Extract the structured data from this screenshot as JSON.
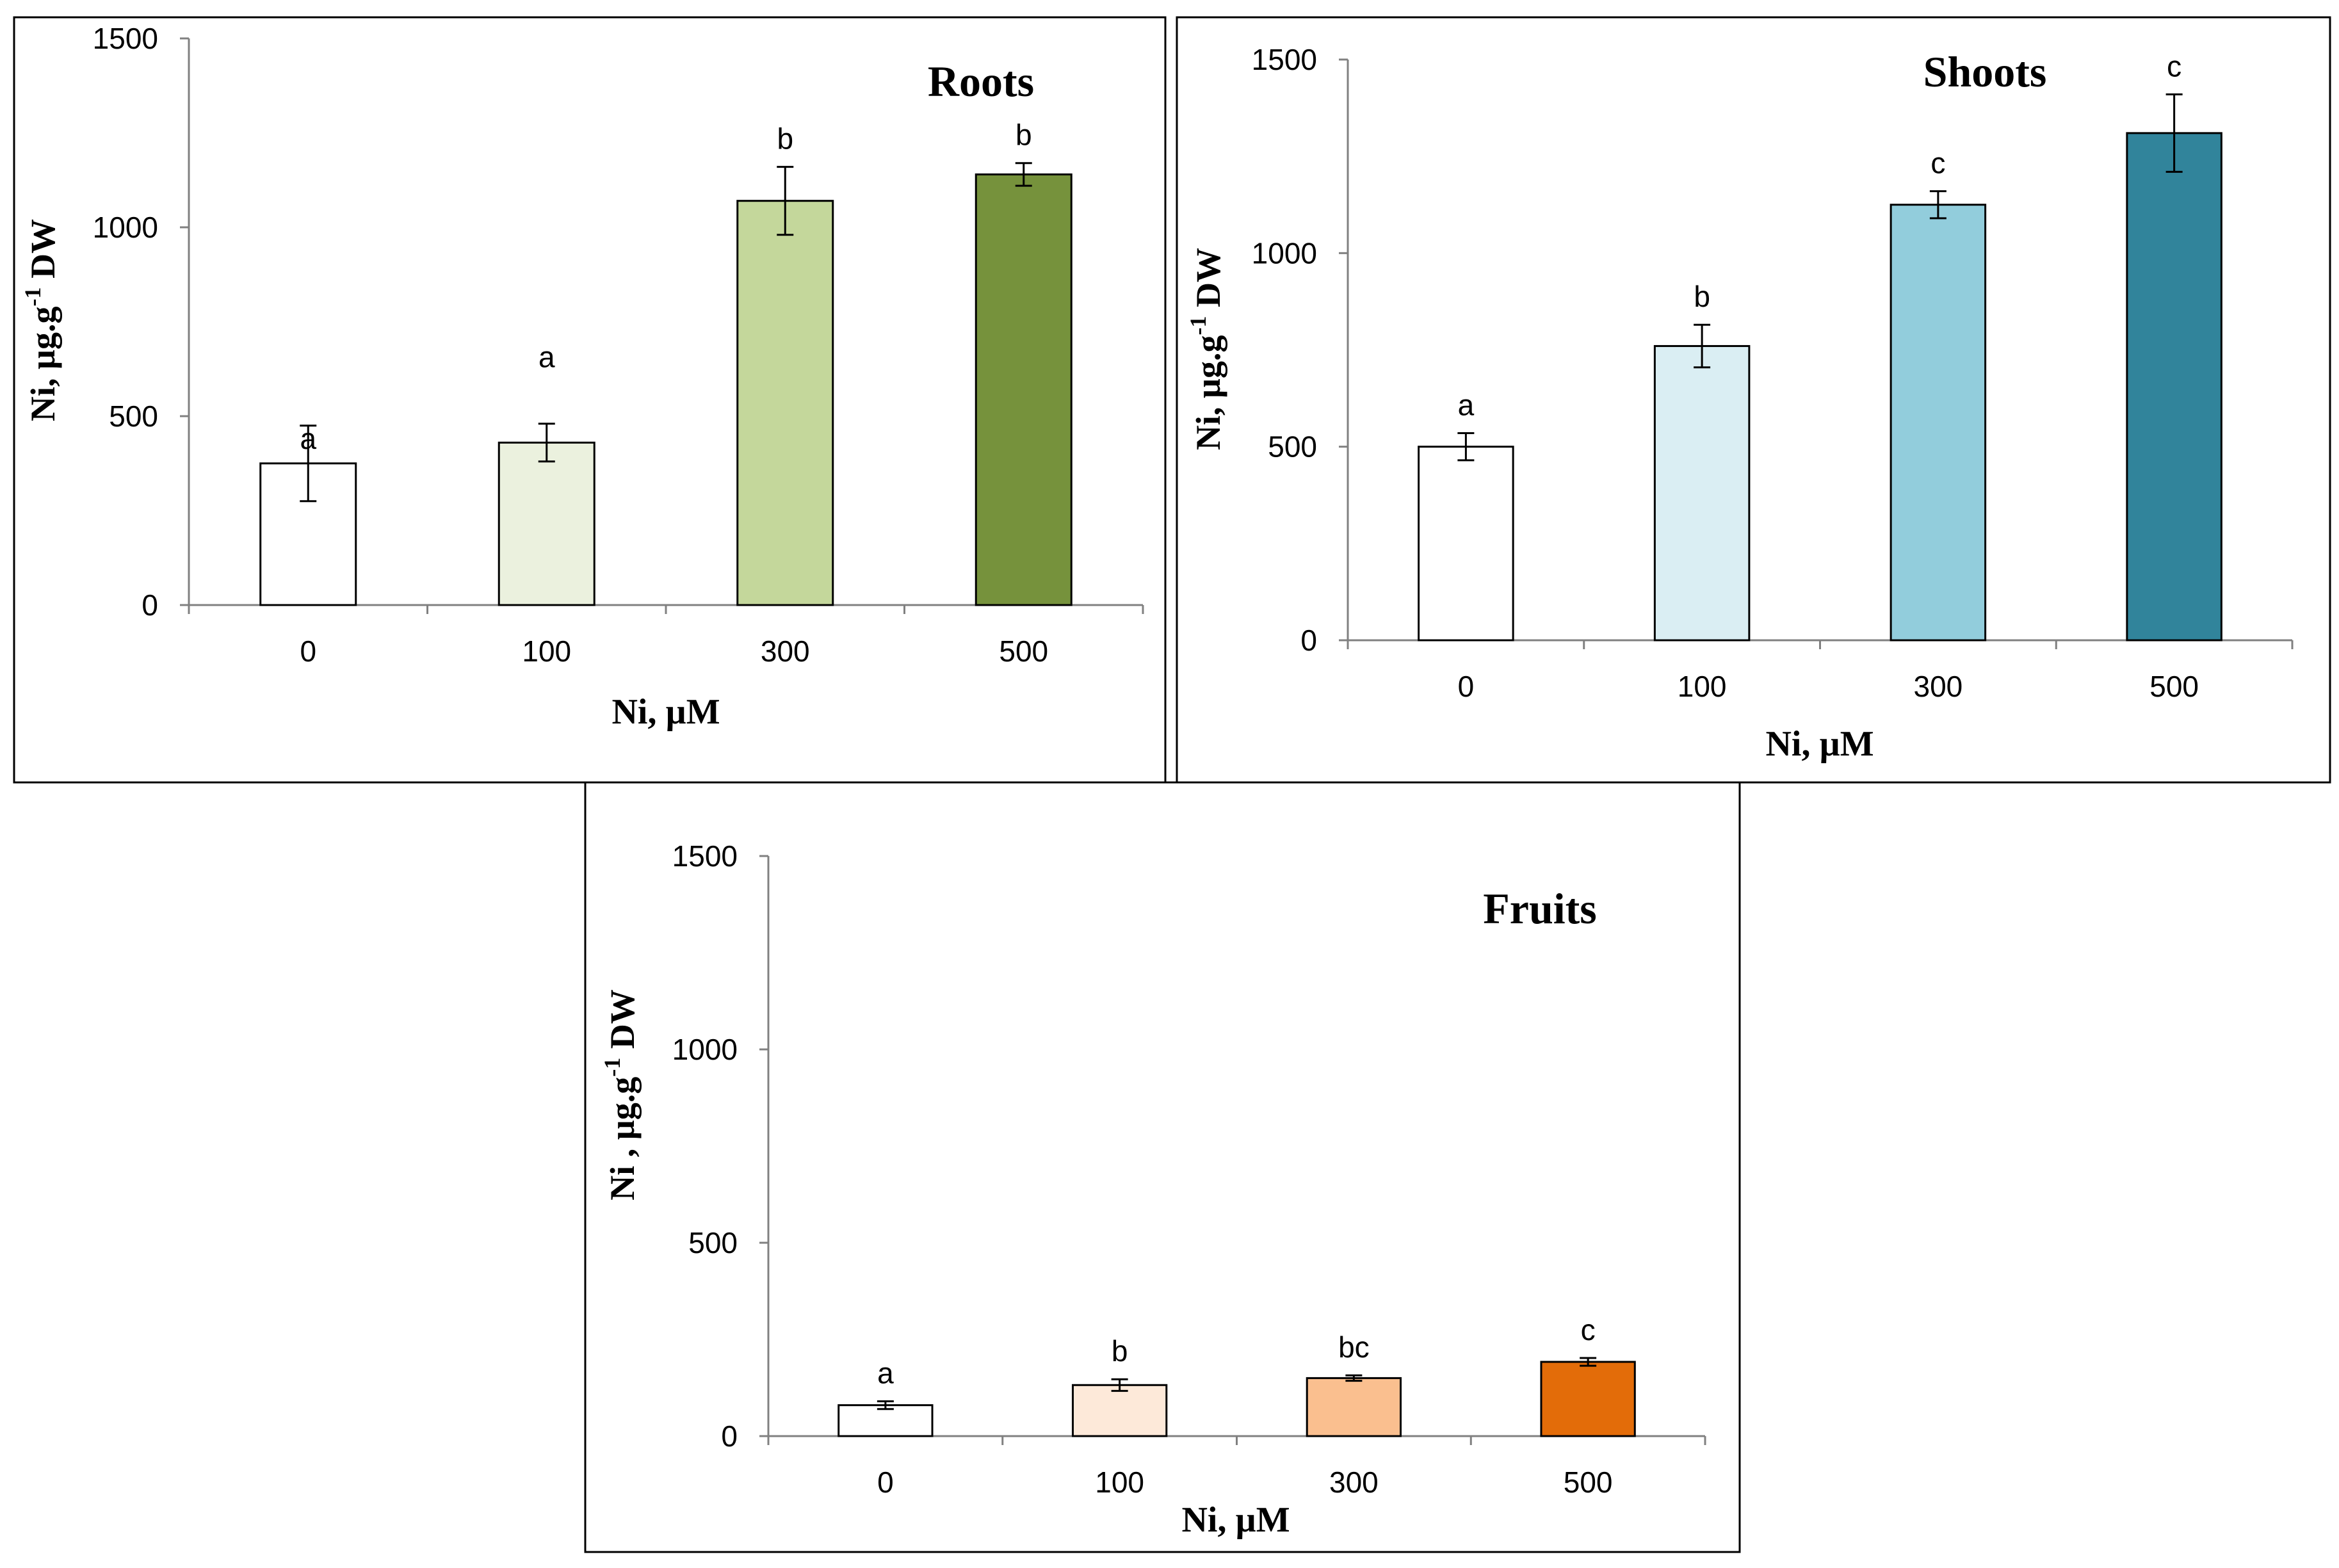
{
  "chart_data": [
    {
      "type": "bar",
      "title": "Roots",
      "xlabel": "Ni, µM",
      "ylabel": "Ni,  µg.g",
      "ylabel_superscript": "-1",
      "ylabel_suffix": " DW",
      "categories": [
        "0",
        "100",
        "300",
        "500"
      ],
      "values": [
        375,
        430,
        1070,
        1140
      ],
      "errors": [
        100,
        50,
        90,
        30
      ],
      "significance": [
        "a",
        "a",
        "b",
        "b"
      ],
      "bar_colors": [
        "#ffffff",
        "#ebf1de",
        "#c4d79b",
        "#76923c"
      ],
      "ylim": [
        0,
        1500
      ],
      "yticks": [
        "0",
        "500",
        "1000",
        "1500"
      ],
      "grid": false
    },
    {
      "type": "bar",
      "title": "Shoots",
      "xlabel": "Ni, µM",
      "ylabel": "Ni,  µg.g",
      "ylabel_superscript": "-1",
      "ylabel_suffix": " DW",
      "categories": [
        "0",
        "100",
        "300",
        "500"
      ],
      "values": [
        500,
        760,
        1125,
        1310
      ],
      "errors": [
        35,
        55,
        35,
        100
      ],
      "significance": [
        "a",
        "b",
        "c",
        "c"
      ],
      "bar_colors": [
        "#ffffff",
        "#daeef3",
        "#92cddc",
        "#31849b"
      ],
      "ylim": [
        0,
        1500
      ],
      "yticks": [
        "0",
        "500",
        "1000",
        "1500"
      ],
      "grid": false
    },
    {
      "type": "bar",
      "title": "Fruits",
      "xlabel": "Ni, µM",
      "ylabel": "Ni ,  µg.g",
      "ylabel_superscript": "-1",
      "ylabel_suffix": " DW",
      "categories": [
        "0",
        "100",
        "300",
        "500"
      ],
      "values": [
        80,
        132,
        150,
        192
      ],
      "errors": [
        10,
        15,
        7,
        10
      ],
      "significance": [
        "a",
        "b",
        "bc",
        "c"
      ],
      "bar_colors": [
        "#ffffff",
        "#fde9d9",
        "#fabf8f",
        "#e36c09"
      ],
      "ylim": [
        0,
        1500
      ],
      "yticks": [
        "0",
        "500",
        "1000",
        "1500"
      ],
      "grid": false
    }
  ]
}
